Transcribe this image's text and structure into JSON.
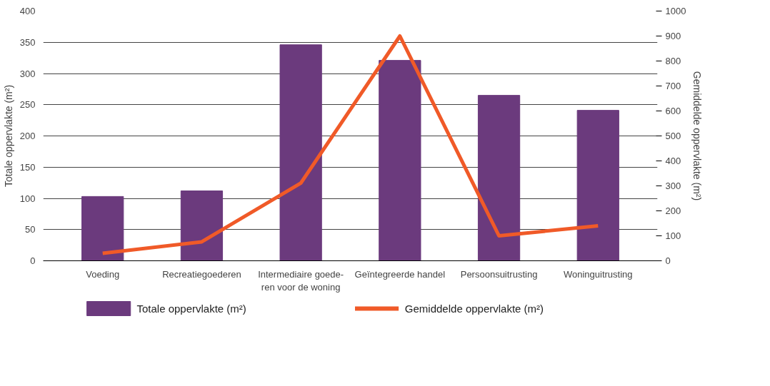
{
  "chart_data": {
    "type": "bar",
    "categories": [
      "Voeding",
      "Recreatiegoederen",
      "Intermediaire goede-\nren voor de woning",
      "Geïntegreerde handel",
      "Persoonsuitrusting",
      "Woninguitrusting"
    ],
    "series": [
      {
        "name": "Totale oppervlakte (m²)",
        "color": "#6b3a7d",
        "values": [
          103,
          112,
          346,
          321,
          265,
          241
        ]
      },
      {
        "name": "Gemiddelde oppervlakte (m²)",
        "type": "line",
        "axis": "y2",
        "color": "#f05a28",
        "values": [
          30,
          76,
          311,
          900,
          100,
          140
        ]
      }
    ],
    "ylabel": "Totale oppervlakte (m²)",
    "y2label": "Gemiddelde oppervlakte (m²)",
    "ylim": [
      0,
      400
    ],
    "yticks": [
      0,
      50,
      100,
      150,
      200,
      250,
      300,
      350,
      400
    ],
    "y2lim": [
      0,
      1000
    ],
    "y2ticks": [
      0,
      100,
      200,
      300,
      400,
      500,
      600,
      700,
      800,
      900,
      1000
    ],
    "grid": "y",
    "legend": "bottom"
  }
}
